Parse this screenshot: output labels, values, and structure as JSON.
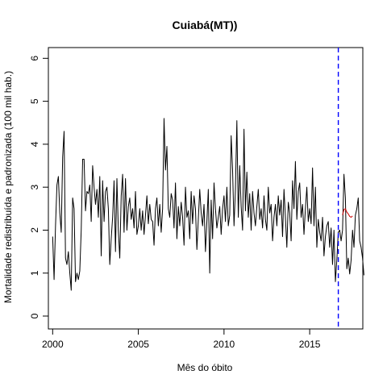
{
  "chart_data": {
    "type": "line",
    "title": "Cuiabá(MT))",
    "xlabel": "Mês do óbito",
    "ylabel": "Mortalidade redistribuída e padronizada (100 mil hab.)",
    "xlim": [
      1999.75,
      2018.1
    ],
    "ylim": [
      -0.3,
      6.25
    ],
    "x_ticks": [
      2000,
      2005,
      2010,
      2015
    ],
    "y_ticks": [
      0,
      1,
      2,
      3,
      4,
      5,
      6
    ],
    "x_start": 2000.0,
    "x_step": 0.0833333,
    "vline": {
      "x": 2016.67,
      "color": "#0000ff",
      "style": "dashed"
    },
    "series": [
      {
        "color": "#000000",
        "values": [
          1.85,
          0.85,
          2.1,
          3.05,
          3.25,
          2.4,
          1.95,
          3.7,
          4.3,
          1.35,
          1.2,
          1.5,
          1.0,
          0.6,
          2.75,
          2.5,
          0.8,
          1.0,
          0.85,
          1.05,
          2.0,
          3.65,
          3.65,
          2.45,
          2.9,
          2.85,
          3.05,
          2.2,
          3.5,
          3.0,
          2.6,
          2.95,
          2.3,
          3.25,
          1.4,
          3.15,
          2.2,
          2.9,
          3.0,
          2.5,
          1.2,
          1.8,
          2.3,
          3.15,
          1.5,
          3.2,
          2.0,
          1.35,
          2.8,
          3.3,
          1.95,
          3.2,
          2.0,
          2.55,
          2.75,
          2.25,
          2.5,
          2.05,
          2.9,
          1.9,
          2.1,
          2.5,
          2.0,
          2.45,
          1.9,
          2.35,
          2.8,
          2.15,
          2.6,
          2.25,
          2.2,
          1.65,
          2.5,
          2.75,
          2.1,
          2.6,
          1.95,
          2.5,
          4.6,
          3.4,
          3.95,
          2.5,
          2.3,
          2.85,
          2.7,
          2.05,
          3.1,
          1.8,
          2.55,
          2.1,
          2.65,
          2.3,
          1.65,
          3.0,
          2.3,
          2.45,
          1.8,
          2.9,
          2.15,
          2.8,
          2.5,
          1.55,
          2.25,
          2.95,
          2.4,
          2.1,
          2.6,
          1.5,
          2.2,
          2.95,
          1.0,
          2.7,
          1.8,
          3.1,
          2.5,
          2.05,
          2.3,
          2.55,
          1.9,
          2.5,
          2.8,
          2.2,
          3.0,
          2.1,
          2.35,
          4.2,
          3.4,
          2.1,
          2.95,
          4.55,
          2.3,
          3.5,
          2.55,
          2.0,
          4.35,
          2.45,
          3.35,
          2.3,
          2.85,
          2.0,
          2.9,
          2.4,
          2.1,
          2.55,
          2.95,
          2.25,
          2.5,
          2.05,
          2.8,
          2.25,
          2.0,
          3.0,
          2.4,
          2.6,
          1.75,
          2.3,
          2.6,
          2.1,
          2.8,
          2.35,
          2.7,
          1.85,
          2.95,
          2.3,
          1.6,
          2.65,
          2.4,
          1.75,
          3.15,
          2.5,
          3.6,
          2.25,
          2.9,
          3.1,
          2.3,
          2.6,
          1.9,
          2.5,
          3.0,
          2.2,
          2.5,
          2.15,
          3.45,
          2.1,
          3.0,
          1.6,
          2.25,
          1.95,
          1.75,
          2.3,
          1.4,
          1.85,
          2.1,
          2.2,
          1.6,
          2.05,
          1.2,
          2.0,
          0.8,
          1.3,
          1.95,
          2.0,
          1.75,
          2.0,
          3.3,
          2.75,
          1.1,
          1.35,
          0.98,
          1.3,
          2.0,
          1.6,
          2.35,
          2.5,
          2.75,
          1.75,
          1.6,
          1.35,
          0.95
        ]
      },
      {
        "color": "#cc0000",
        "x_offset": 203,
        "values": [
          2.35,
          2.48,
          2.5,
          2.42,
          2.38,
          2.32,
          2.3,
          2.33
        ]
      }
    ]
  }
}
